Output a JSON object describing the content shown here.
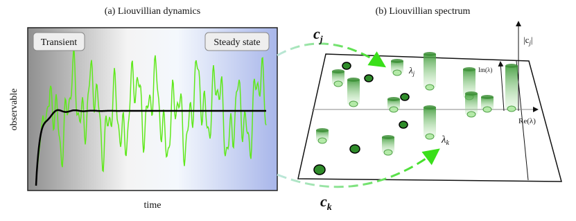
{
  "panel_a": {
    "title": "(a) Liouvillian dynamics",
    "y_label": "observable",
    "x_label": "time",
    "regions": [
      "Transient",
      "Steady state"
    ]
  },
  "panel_b": {
    "title": "(b) Liouvillian spectrum",
    "coefficients": [
      {
        "symbol": "c",
        "index": "j"
      },
      {
        "symbol": "c",
        "index": "k"
      }
    ],
    "eigenvalues": [
      {
        "symbol": "λ",
        "index": "j"
      },
      {
        "symbol": "λ",
        "index": "k"
      }
    ],
    "vertical_axis": {
      "open": "|c",
      "index": "j",
      "close": "|"
    },
    "imaginary_axis": "Im(λ)",
    "real_axis": "Re(λ)"
  }
}
